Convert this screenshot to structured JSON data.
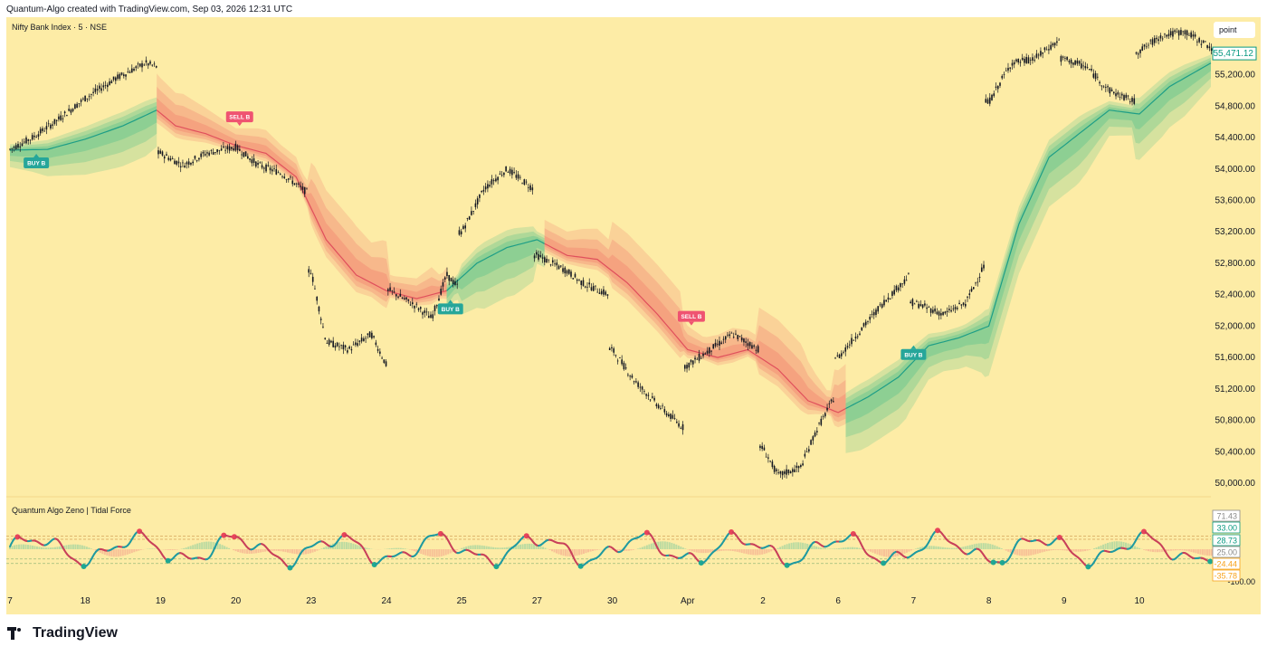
{
  "credit": "Quantum-Algo created with TradingView.com, Sep 03, 2026 12:31 UTC",
  "symbol_title": "Nifty Bank Index · 5 · NSE",
  "indicator_title": "Quantum Algo Zeno | Tidal Force",
  "scale_button": "point",
  "brand": "TradingView",
  "colors": {
    "background": "#fdeca6",
    "bull_band": "#4cc08a",
    "bear_band": "#f0786a",
    "buy_label": "#26a69a",
    "sell_label": "#ef5371",
    "osc_bull": "#1f9aa0",
    "osc_bear": "#c8405a"
  },
  "chart_data": [
    {
      "type": "candlestick",
      "title": "Nifty Bank Index · 5 · NSE",
      "y_axis_ticks": [
        "55,200.00",
        "54,800.00",
        "54,400.00",
        "54,000.00",
        "53,600.00",
        "53,200.00",
        "52,800.00",
        "52,400.00",
        "52,000.00",
        "51,600.00",
        "51,200.00",
        "50,800.00",
        "50,400.00",
        "50,000.00"
      ],
      "ylim": [
        49950,
        55800
      ],
      "x_tick_labels": [
        "7",
        "18",
        "19",
        "20",
        "23",
        "24",
        "25",
        "27",
        "30",
        "Apr",
        "2",
        "6",
        "7",
        "8",
        "9",
        "10"
      ],
      "last_price_label": "55,471.12",
      "last_price": 55471.12,
      "price_path": [
        [
          0,
          54250
        ],
        [
          0.3,
          54400
        ],
        [
          0.6,
          54600
        ],
        [
          1,
          54900
        ],
        [
          1.4,
          55150
        ],
        [
          1.8,
          55350
        ],
        [
          1.95,
          55300
        ],
        [
          2.0,
          54200
        ],
        [
          2.3,
          54050
        ],
        [
          2.6,
          54200
        ],
        [
          3.0,
          54280
        ],
        [
          3.3,
          54050
        ],
        [
          3.6,
          53950
        ],
        [
          3.95,
          53700
        ],
        [
          4.0,
          52700
        ],
        [
          4.2,
          51800
        ],
        [
          4.5,
          51700
        ],
        [
          4.8,
          51900
        ],
        [
          5.0,
          51500
        ],
        [
          5.05,
          52450
        ],
        [
          5.4,
          52250
        ],
        [
          5.6,
          52100
        ],
        [
          5.8,
          52650
        ],
        [
          5.95,
          52500
        ],
        [
          6.0,
          53200
        ],
        [
          6.3,
          53750
        ],
        [
          6.6,
          54000
        ],
        [
          6.95,
          53750
        ],
        [
          7.0,
          52900
        ],
        [
          7.4,
          52700
        ],
        [
          7.6,
          52550
        ],
        [
          7.95,
          52400
        ],
        [
          8.0,
          51700
        ],
        [
          8.3,
          51300
        ],
        [
          8.6,
          51000
        ],
        [
          8.95,
          50700
        ],
        [
          9.0,
          51500
        ],
        [
          9.3,
          51700
        ],
        [
          9.6,
          51900
        ],
        [
          9.95,
          51700
        ],
        [
          10.0,
          50450
        ],
        [
          10.2,
          50100
        ],
        [
          10.5,
          50200
        ],
        [
          10.7,
          50650
        ],
        [
          10.95,
          51100
        ],
        [
          11.0,
          51600
        ],
        [
          11.3,
          51950
        ],
        [
          11.6,
          52300
        ],
        [
          11.95,
          52650
        ],
        [
          12.0,
          52300
        ],
        [
          12.4,
          52150
        ],
        [
          12.7,
          52300
        ],
        [
          12.95,
          52800
        ],
        [
          13.0,
          54850
        ],
        [
          13.3,
          55350
        ],
        [
          13.6,
          55400
        ],
        [
          13.95,
          55650
        ],
        [
          14.0,
          55400
        ],
        [
          14.3,
          55300
        ],
        [
          14.6,
          55000
        ],
        [
          14.95,
          54850
        ],
        [
          15.0,
          55500
        ],
        [
          15.3,
          55700
        ],
        [
          15.6,
          55750
        ],
        [
          15.95,
          55550
        ]
      ],
      "trend_path": [
        [
          0,
          54240
        ],
        [
          0.5,
          54250
        ],
        [
          1,
          54380
        ],
        [
          1.5,
          54550
        ],
        [
          1.95,
          54750
        ],
        [
          2.2,
          54550
        ],
        [
          2.6,
          54450
        ],
        [
          3.0,
          54300
        ],
        [
          3.4,
          54200
        ],
        [
          3.8,
          53900
        ],
        [
          4.2,
          53100
        ],
        [
          4.6,
          52650
        ],
        [
          5.0,
          52450
        ],
        [
          5.4,
          52350
        ],
        [
          5.8,
          52450
        ],
        [
          6.2,
          52800
        ],
        [
          6.6,
          53000
        ],
        [
          7.0,
          53100
        ],
        [
          7.4,
          52900
        ],
        [
          7.8,
          52850
        ],
        [
          8.2,
          52550
        ],
        [
          8.6,
          52150
        ],
        [
          9.0,
          51700
        ],
        [
          9.4,
          51600
        ],
        [
          9.8,
          51700
        ],
        [
          10.2,
          51450
        ],
        [
          10.6,
          51050
        ],
        [
          11.0,
          50900
        ],
        [
          11.4,
          51100
        ],
        [
          11.8,
          51350
        ],
        [
          12.2,
          51750
        ],
        [
          12.6,
          51850
        ],
        [
          13.0,
          52000
        ],
        [
          13.4,
          53300
        ],
        [
          13.8,
          54150
        ],
        [
          14.2,
          54450
        ],
        [
          14.6,
          54750
        ],
        [
          15.0,
          54700
        ],
        [
          15.4,
          55050
        ],
        [
          15.95,
          55350
        ]
      ],
      "trend_state": [
        [
          0,
          1.95,
          "bull"
        ],
        [
          1.95,
          5.8,
          "bear"
        ],
        [
          5.8,
          7.1,
          "bull"
        ],
        [
          7.1,
          11.1,
          "bear"
        ],
        [
          11.1,
          15.95,
          "bull"
        ]
      ],
      "signals": [
        {
          "label": "BUY B",
          "type": "buy",
          "x": 0.35,
          "y": 54240
        },
        {
          "label": "SELL B",
          "type": "sell",
          "x": 3.05,
          "y": 54480
        },
        {
          "label": "BUY B",
          "type": "buy",
          "x": 5.85,
          "y": 52380
        },
        {
          "label": "SELL B",
          "type": "sell",
          "x": 9.05,
          "y": 51940
        },
        {
          "label": "BUY B",
          "type": "buy",
          "x": 12.0,
          "y": 51800
        }
      ]
    },
    {
      "type": "line",
      "title": "Quantum Algo Zeno | Tidal Force",
      "y_axis_ticks": [
        "-100.00"
      ],
      "ylim": [
        -100,
        75
      ],
      "value_labels": [
        {
          "text": "71.43",
          "value": 71.43,
          "color": "#8a8a8a"
        },
        {
          "text": "33.00",
          "value": 33.0,
          "color": "#089981"
        },
        {
          "text": "28.73",
          "value": 28.73,
          "color": "#089981"
        },
        {
          "text": "25.00",
          "value": 25.0,
          "color": "#8a8a8a"
        },
        {
          "text": "-24.44",
          "value": -24.44,
          "color": "#f7a21b"
        },
        {
          "text": "-35.78",
          "value": -35.78,
          "color": "#f7a21b"
        }
      ],
      "reference_levels": [
        33,
        25,
        -24.44,
        -35.78
      ]
    }
  ]
}
